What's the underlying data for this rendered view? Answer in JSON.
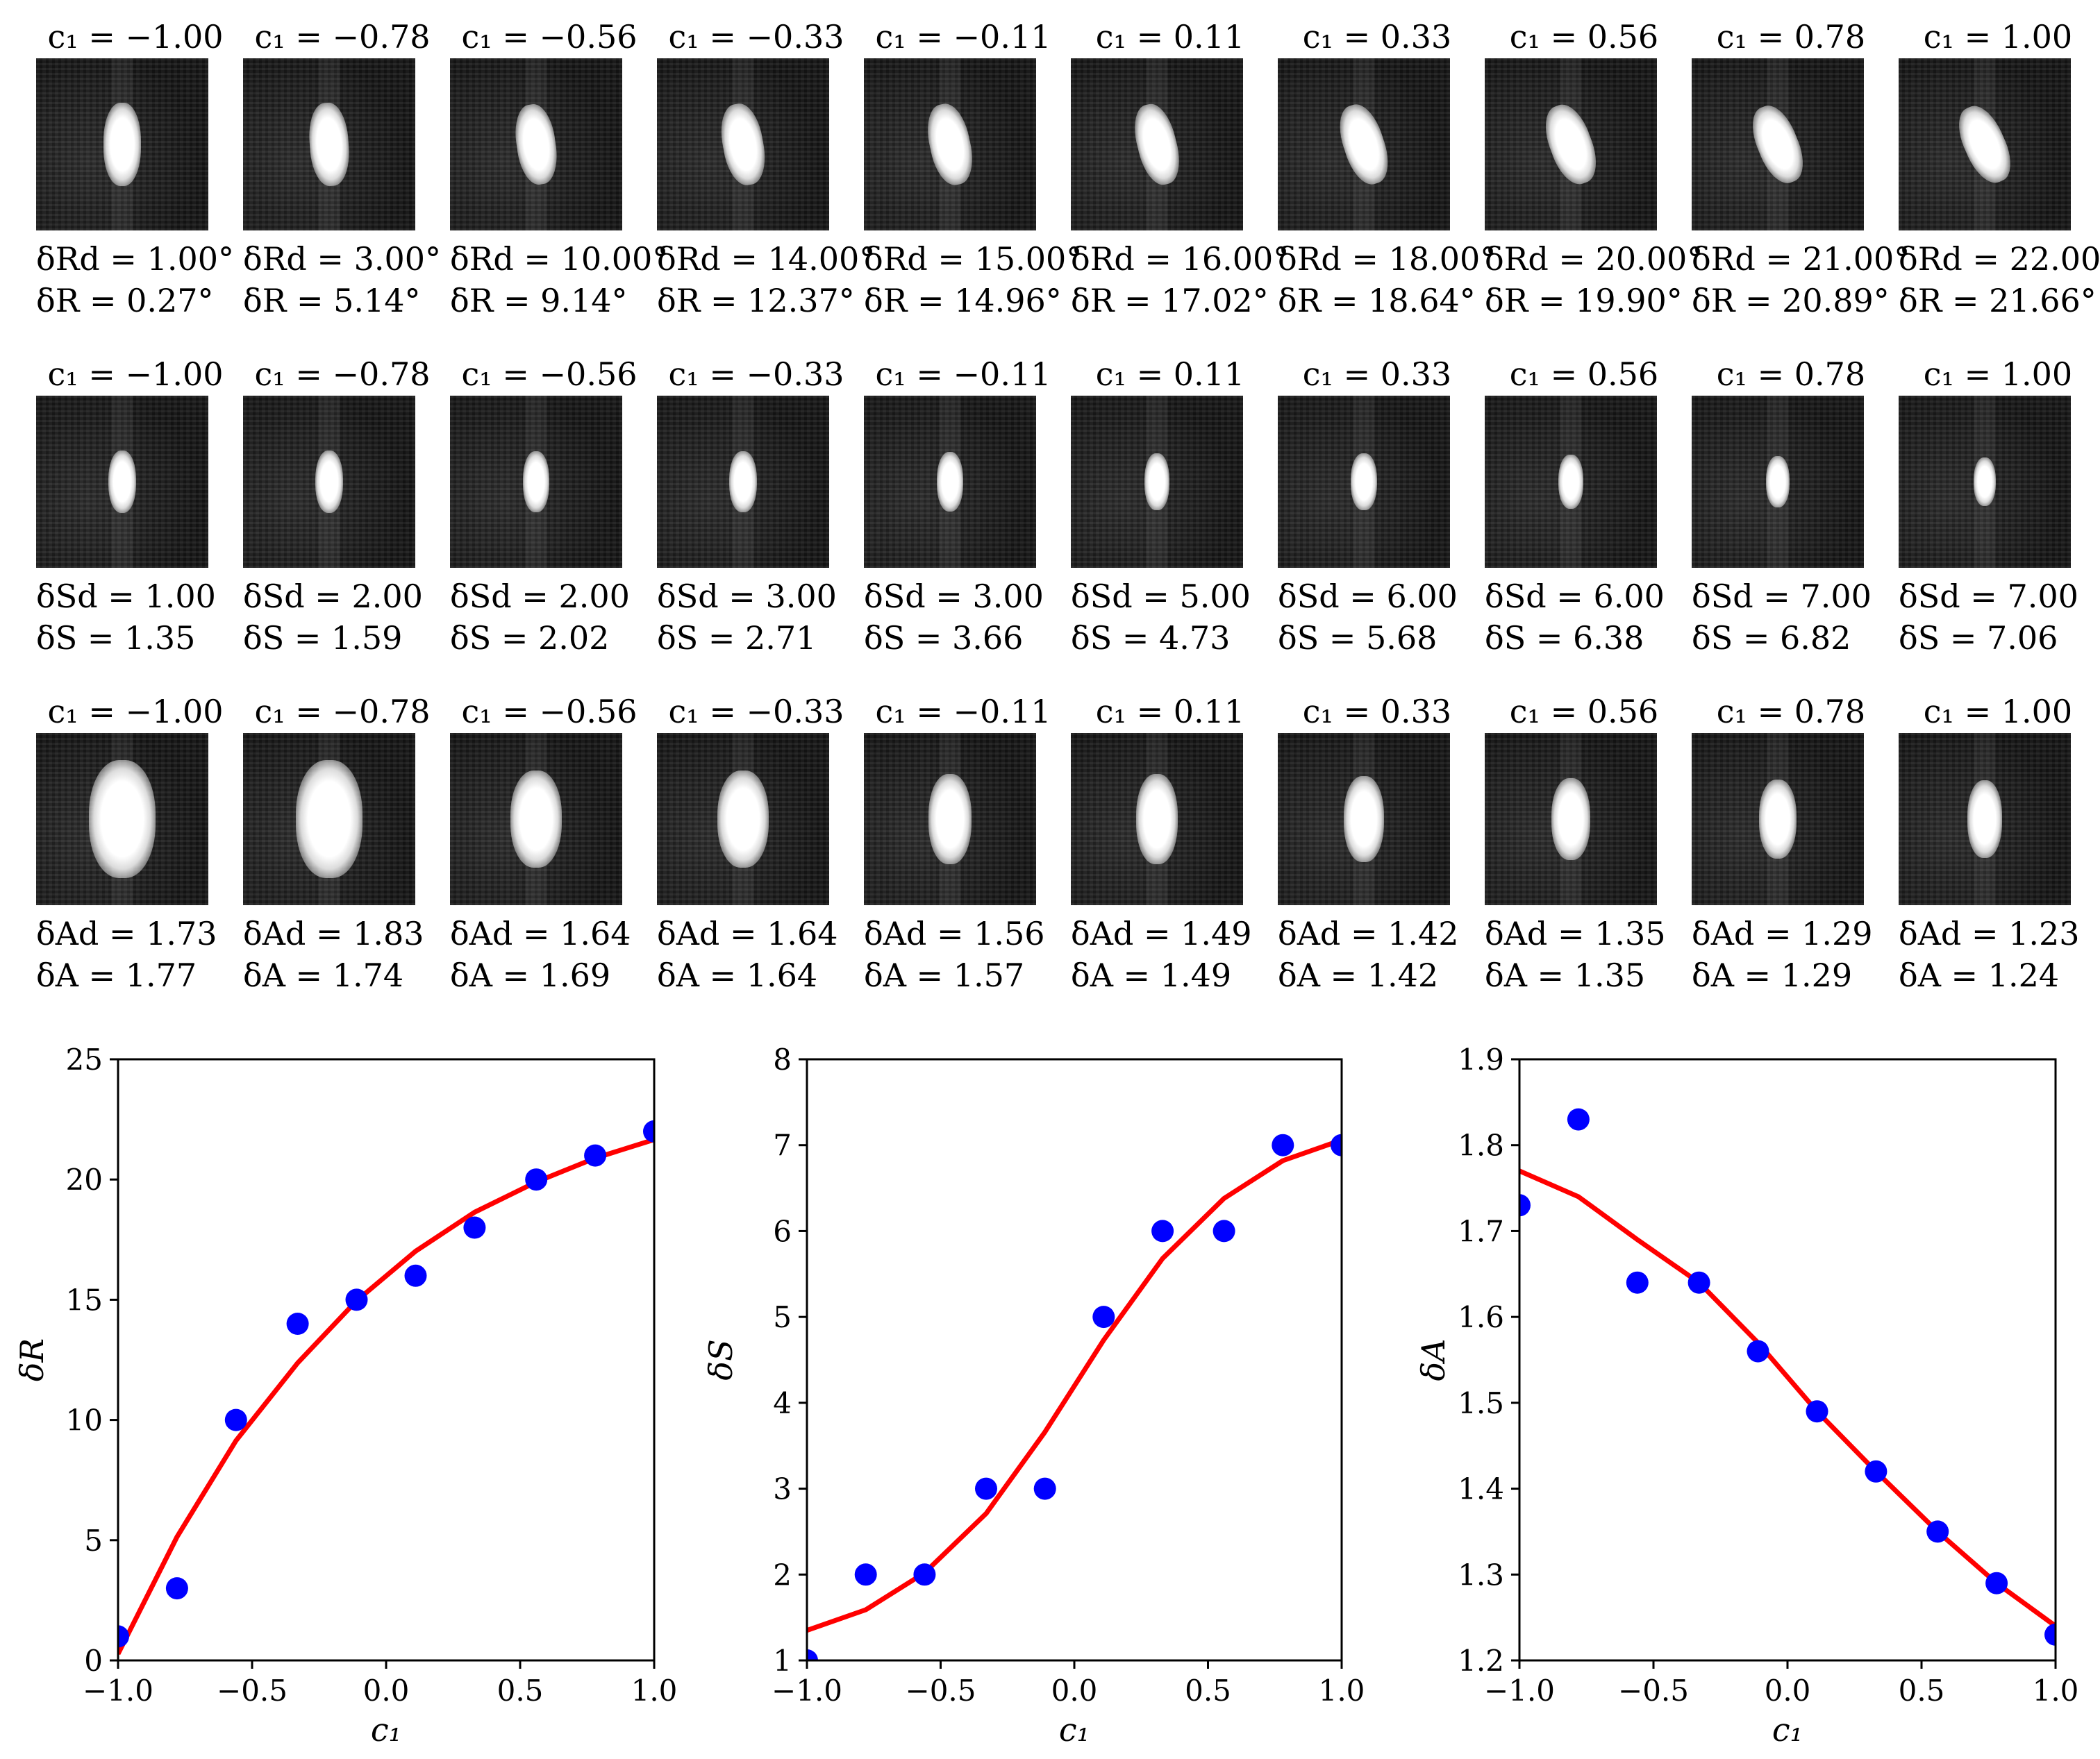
{
  "rows": [
    {
      "id": "R",
      "c1": [
        "c₁ = −1.00",
        "c₁ = −0.78",
        "c₁ = −0.56",
        "c₁ = −0.33",
        "c₁ = −0.11",
        "c₁ = 0.11",
        "c₁ = 0.33",
        "c₁ = 0.56",
        "c₁ = 0.78",
        "c₁ = 1.00"
      ],
      "line1": [
        "δRd = 1.00°",
        "δRd = 3.00°",
        "δRd = 10.00°",
        "δRd = 14.00°",
        "δRd = 15.00°",
        "δRd = 16.00°",
        "δRd = 18.00°",
        "δRd = 20.00°",
        "δRd = 21.00°",
        "δRd = 22.00°"
      ],
      "line2": [
        "δR = 0.27°",
        "δR = 5.14°",
        "δR = 9.14°",
        "δR = 12.37°",
        "δR = 14.96°",
        "δR = 17.02°",
        "δR = 18.64°",
        "δR = 19.90°",
        "δR = 20.89°",
        "δR = 21.66°"
      ]
    },
    {
      "id": "S",
      "c1": [
        "c₁ = −1.00",
        "c₁ = −0.78",
        "c₁ = −0.56",
        "c₁ = −0.33",
        "c₁ = −0.11",
        "c₁ = 0.11",
        "c₁ = 0.33",
        "c₁ = 0.56",
        "c₁ = 0.78",
        "c₁ = 1.00"
      ],
      "line1": [
        "δSd = 1.00",
        "δSd = 2.00",
        "δSd = 2.00",
        "δSd = 3.00",
        "δSd = 3.00",
        "δSd = 5.00",
        "δSd = 6.00",
        "δSd = 6.00",
        "δSd = 7.00",
        "δSd = 7.00"
      ],
      "line2": [
        "δS = 1.35",
        "δS = 1.59",
        "δS = 2.02",
        "δS = 2.71",
        "δS = 3.66",
        "δS = 4.73",
        "δS = 5.68",
        "δS = 6.38",
        "δS = 6.82",
        "δS = 7.06"
      ]
    },
    {
      "id": "A",
      "c1": [
        "c₁ = −1.00",
        "c₁ = −0.78",
        "c₁ = −0.56",
        "c₁ = −0.33",
        "c₁ = −0.11",
        "c₁ = 0.11",
        "c₁ = 0.33",
        "c₁ = 0.56",
        "c₁ = 0.78",
        "c₁ = 1.00"
      ],
      "line1": [
        "δAd = 1.73",
        "δAd = 1.83",
        "δAd = 1.64",
        "δAd = 1.64",
        "δAd = 1.56",
        "δAd = 1.49",
        "δAd = 1.42",
        "δAd = 1.35",
        "δAd = 1.29",
        "δAd = 1.23"
      ],
      "line2": [
        "δA = 1.77",
        "δA = 1.74",
        "δA = 1.69",
        "δA = 1.64",
        "δA = 1.57",
        "δA = 1.49",
        "δA = 1.42",
        "δA = 1.35",
        "δA = 1.29",
        "δA = 1.24"
      ]
    }
  ],
  "colors": {
    "points": "#0000ff",
    "fit": "#ff0000",
    "axes": "#000000",
    "image_bg": "#1b1b1b"
  },
  "chart_data": [
    {
      "type": "scatter",
      "title": "",
      "xlabel": "c₁",
      "ylabel": "δR",
      "xlim": [
        -1.0,
        1.0
      ],
      "ylim": [
        0,
        25
      ],
      "xticks": [
        "−1.0",
        "−0.5",
        "0.0",
        "0.5",
        "1.0"
      ],
      "xtick_values": [
        -1.0,
        -0.5,
        0.0,
        0.5,
        1.0
      ],
      "yticks": [
        "0",
        "5",
        "10",
        "15",
        "20",
        "25"
      ],
      "ytick_values": [
        0,
        5,
        10,
        15,
        20,
        25
      ],
      "series": [
        {
          "name": "δRd",
          "style": "points",
          "x": [
            -1.0,
            -0.78,
            -0.56,
            -0.33,
            -0.11,
            0.11,
            0.33,
            0.56,
            0.78,
            1.0
          ],
          "values": [
            1,
            3,
            10,
            14,
            15,
            16,
            18,
            20,
            21,
            22
          ]
        },
        {
          "name": "δR",
          "style": "line",
          "x": [
            -1.0,
            -0.78,
            -0.56,
            -0.33,
            -0.11,
            0.11,
            0.33,
            0.56,
            0.78,
            1.0
          ],
          "values": [
            0.27,
            5.14,
            9.14,
            12.37,
            14.96,
            17.02,
            18.64,
            19.9,
            20.89,
            21.66
          ]
        }
      ]
    },
    {
      "type": "scatter",
      "title": "",
      "xlabel": "c₁",
      "ylabel": "δS",
      "xlim": [
        -1.0,
        1.0
      ],
      "ylim": [
        1,
        8
      ],
      "xticks": [
        "−1.0",
        "−0.5",
        "0.0",
        "0.5",
        "1.0"
      ],
      "xtick_values": [
        -1.0,
        -0.5,
        0.0,
        0.5,
        1.0
      ],
      "yticks": [
        "1",
        "2",
        "3",
        "4",
        "5",
        "6",
        "7",
        "8"
      ],
      "ytick_values": [
        1,
        2,
        3,
        4,
        5,
        6,
        7,
        8
      ],
      "series": [
        {
          "name": "δSd",
          "style": "points",
          "x": [
            -1.0,
            -0.78,
            -0.56,
            -0.33,
            -0.11,
            0.11,
            0.33,
            0.56,
            0.78,
            1.0
          ],
          "values": [
            1,
            2,
            2,
            3,
            3,
            5,
            6,
            6,
            7,
            7
          ]
        },
        {
          "name": "δS",
          "style": "line",
          "x": [
            -1.0,
            -0.78,
            -0.56,
            -0.33,
            -0.11,
            0.11,
            0.33,
            0.56,
            0.78,
            1.0
          ],
          "values": [
            1.35,
            1.59,
            2.02,
            2.71,
            3.66,
            4.73,
            5.68,
            6.38,
            6.82,
            7.06
          ]
        }
      ]
    },
    {
      "type": "scatter",
      "title": "",
      "xlabel": "c₁",
      "ylabel": "δA",
      "xlim": [
        -1.0,
        1.0
      ],
      "ylim": [
        1.2,
        1.9
      ],
      "xticks": [
        "−1.0",
        "−0.5",
        "0.0",
        "0.5",
        "1.0"
      ],
      "xtick_values": [
        -1.0,
        -0.5,
        0.0,
        0.5,
        1.0
      ],
      "yticks": [
        "1.2",
        "1.3",
        "1.4",
        "1.5",
        "1.6",
        "1.7",
        "1.8",
        "1.9"
      ],
      "ytick_values": [
        1.2,
        1.3,
        1.4,
        1.5,
        1.6,
        1.7,
        1.8,
        1.9
      ],
      "series": [
        {
          "name": "δAd",
          "style": "points",
          "x": [
            -1.0,
            -0.78,
            -0.56,
            -0.33,
            -0.11,
            0.11,
            0.33,
            0.56,
            0.78,
            1.0
          ],
          "values": [
            1.73,
            1.83,
            1.64,
            1.64,
            1.56,
            1.49,
            1.42,
            1.35,
            1.29,
            1.23
          ]
        },
        {
          "name": "δA",
          "style": "line",
          "x": [
            -1.0,
            -0.78,
            -0.56,
            -0.33,
            -0.11,
            0.11,
            0.33,
            0.56,
            0.78,
            1.0
          ],
          "values": [
            1.77,
            1.74,
            1.69,
            1.64,
            1.57,
            1.49,
            1.42,
            1.35,
            1.29,
            1.24
          ]
        }
      ]
    }
  ]
}
